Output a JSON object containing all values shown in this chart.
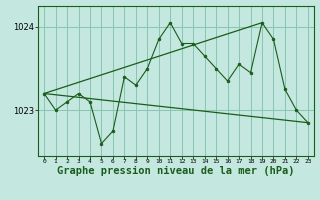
{
  "background_color": "#c4e8e0",
  "grid_color": "#88c4b0",
  "line_color": "#1a5c1a",
  "title": "Graphe pression niveau de la mer (hPa)",
  "title_fontsize": 7.5,
  "xlabel_ticks": [
    0,
    1,
    2,
    3,
    4,
    5,
    6,
    7,
    8,
    9,
    10,
    11,
    12,
    13,
    14,
    15,
    16,
    17,
    18,
    19,
    20,
    21,
    22,
    23
  ],
  "ylim": [
    1022.45,
    1024.25
  ],
  "yticks": [
    1023,
    1024
  ],
  "series1_x": [
    0,
    1,
    2,
    3,
    4,
    5,
    6,
    7,
    8,
    9,
    10,
    11,
    12,
    13,
    14,
    15,
    16,
    17,
    18,
    19,
    20,
    21,
    22,
    23
  ],
  "series1_y": [
    1023.2,
    1023.0,
    1023.1,
    1023.2,
    1023.1,
    1022.6,
    1022.75,
    1023.4,
    1023.3,
    1023.5,
    1023.85,
    1024.05,
    1023.8,
    1023.8,
    1023.65,
    1023.5,
    1023.35,
    1023.55,
    1023.45,
    1024.05,
    1023.85,
    1023.25,
    1023.0,
    1022.85
  ],
  "series2_x": [
    0,
    23
  ],
  "series2_y": [
    1023.2,
    1022.85
  ],
  "series3_x": [
    0,
    19
  ],
  "series3_y": [
    1023.2,
    1024.05
  ]
}
